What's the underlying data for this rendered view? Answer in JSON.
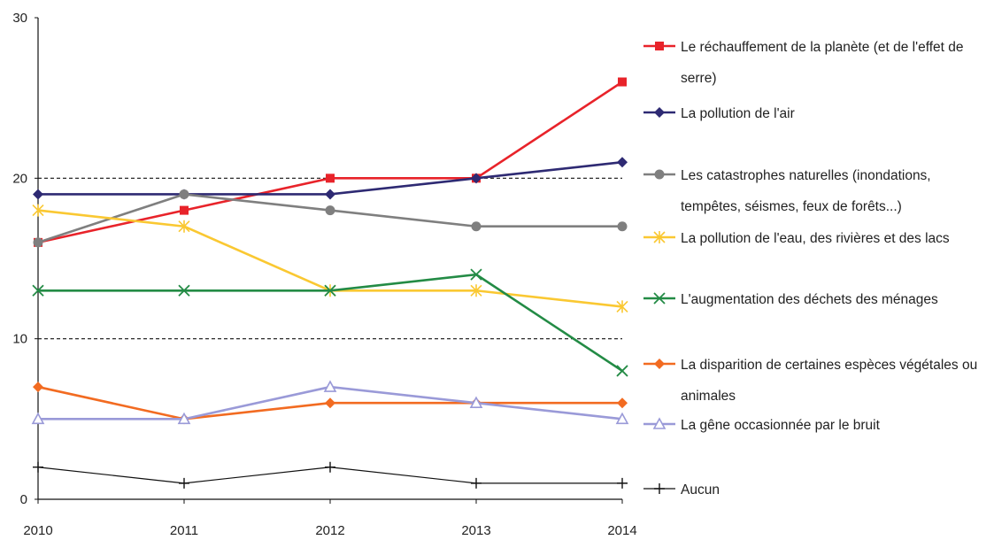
{
  "chart_data": {
    "type": "line",
    "x": [
      2010,
      2011,
      2012,
      2013,
      2014
    ],
    "x_tick_labels": [
      "2010",
      "2011",
      "2012",
      "2013",
      "2014"
    ],
    "ylim": [
      0,
      30
    ],
    "y_ticks": [
      0,
      10,
      20,
      30
    ],
    "y_tick_labels": [
      "0",
      "10",
      "20",
      "30"
    ],
    "reference_lines": [
      10,
      20
    ],
    "legend_position": "right",
    "series": [
      {
        "name": "Le réchauffement de la planète (et de l'effet de serre)",
        "label_lines": [
          "Le réchauffement de la planète (et de l'effet de",
          "serre)"
        ],
        "color": "#e8232a",
        "marker": "square",
        "values": [
          16,
          18,
          20,
          20,
          26
        ]
      },
      {
        "name": "La pollution de l'air",
        "label_lines": [
          "La pollution de l'air"
        ],
        "color": "#2e2a73",
        "marker": "diamond",
        "values": [
          19,
          19,
          19,
          20,
          21
        ]
      },
      {
        "name": "Les catastrophes naturelles (inondations, tempêtes, séismes, feux de forêts...)",
        "label_lines": [
          "Les catastrophes naturelles (inondations,",
          "tempêtes, séismes, feux de forêts...)"
        ],
        "color": "#7f7f7f",
        "marker": "circle",
        "values": [
          16,
          19,
          18,
          17,
          17
        ]
      },
      {
        "name": "La pollution de l'eau, des rivières et des lacs",
        "label_lines": [
          "La pollution de l'eau, des rivières et des lacs"
        ],
        "color": "#fac832",
        "marker": "star",
        "values": [
          18,
          17,
          13,
          13,
          12
        ]
      },
      {
        "name": "L'augmentation des déchets des ménages",
        "label_lines": [
          "L'augmentation des déchets des ménages"
        ],
        "color": "#238b45",
        "marker": "x",
        "values": [
          13,
          13,
          13,
          14,
          8
        ]
      },
      {
        "name": "La disparition de certaines espèces végétales ou animales",
        "label_lines": [
          "La disparition de certaines espèces végétales ou",
          "animales"
        ],
        "color": "#f26b21",
        "marker": "diamond",
        "values": [
          7,
          5,
          6,
          6,
          6
        ]
      },
      {
        "name": "La gêne occasionnée par le bruit",
        "label_lines": [
          "La gêne occasionnée par le bruit"
        ],
        "color": "#9a9ad8",
        "marker": "triangle",
        "values": [
          5,
          5,
          7,
          6,
          5
        ]
      },
      {
        "name": "Aucun",
        "label_lines": [
          "Aucun"
        ],
        "color": "#111111",
        "marker": "plus",
        "values": [
          2,
          1,
          2,
          1,
          1
        ]
      }
    ]
  }
}
